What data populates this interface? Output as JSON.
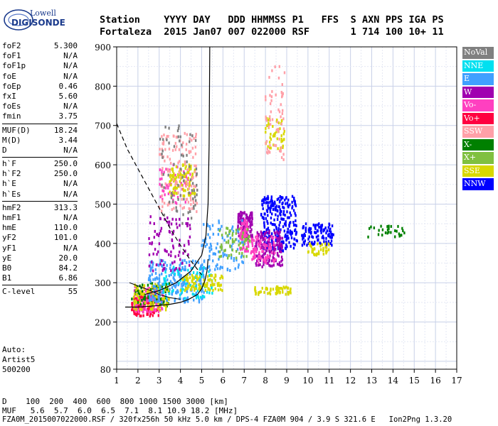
{
  "brand": {
    "line1": "Lowell",
    "line2": "DIGISONDE"
  },
  "header": {
    "titles": [
      "Station",
      "YYYY",
      "DAY",
      "DDD",
      "HHMMSS",
      "P1",
      "FFS",
      "S",
      "AXN",
      "PPS",
      "IGA",
      "PS"
    ],
    "values": [
      "Fortaleza",
      "2015",
      "Jan07",
      "007",
      "022000",
      "RSF",
      "",
      "1",
      "714",
      "100",
      "10+",
      "11"
    ]
  },
  "params": [
    {
      "label": "foF2",
      "value": "5.300"
    },
    {
      "label": "foF1",
      "value": "N/A"
    },
    {
      "label": "foF1p",
      "value": "N/A"
    },
    {
      "label": "foE",
      "value": "N/A"
    },
    {
      "label": "foEp",
      "value": "0.46"
    },
    {
      "label": "fxI",
      "value": "5.60"
    },
    {
      "label": "foEs",
      "value": "N/A"
    },
    {
      "label": "fmin",
      "value": "3.75"
    },
    {
      "label": "MUF(D)",
      "value": "18.24"
    },
    {
      "label": "M(D)",
      "value": "3.44"
    },
    {
      "label": "D",
      "value": "N/A"
    },
    {
      "label": "h`F",
      "value": "250.0"
    },
    {
      "label": "h`F2",
      "value": "250.0"
    },
    {
      "label": "h`E",
      "value": "N/A"
    },
    {
      "label": "h`Es",
      "value": "N/A"
    },
    {
      "label": "hmF2",
      "value": "313.3"
    },
    {
      "label": "hmF1",
      "value": "N/A"
    },
    {
      "label": "hmE",
      "value": "110.0"
    },
    {
      "label": "yF2",
      "value": "101.0"
    },
    {
      "label": "yF1",
      "value": "N/A"
    },
    {
      "label": "yE",
      "value": "20.0"
    },
    {
      "label": "B0",
      "value": "84.2"
    },
    {
      "label": "B1",
      "value": "6.86"
    },
    {
      "label": "C-level",
      "value": "55"
    }
  ],
  "auto": {
    "line1": "Auto:",
    "line2": "Artist5",
    "line3": "500200"
  },
  "legend": [
    {
      "label": "NoVal",
      "color": "#808080"
    },
    {
      "label": "NNE",
      "color": "#00e0f0"
    },
    {
      "label": "E",
      "color": "#40a0ff"
    },
    {
      "label": "W",
      "color": "#a000b0"
    },
    {
      "label": "Vo-",
      "color": "#ff40c0"
    },
    {
      "label": "Vo+",
      "color": "#ff0040"
    },
    {
      "label": "SSW",
      "color": "#ffa0a8"
    },
    {
      "label": "X-",
      "color": "#008000"
    },
    {
      "label": "X+",
      "color": "#80c040"
    },
    {
      "label": "SSE",
      "color": "#d8d800"
    },
    {
      "label": "NNW",
      "color": "#0000ff"
    }
  ],
  "bottom": {
    "d_row": "D    100  200  400  600  800 1000 1500 3000 [km]",
    "muf_row": "MUF   5.6  5.7  6.0  6.5  7.1  8.1 10.9 18.2 [MHz]",
    "footer": "FZA0M_2015007022000.RSF / 320fx256h 50 kHz 5.0 km / DPS-4 FZA0M 904 / 3.9 S 321.6 E   Ion2Png 1.3.20"
  },
  "chart_data": {
    "type": "scatter",
    "xlim": [
      1,
      17
    ],
    "ylim": [
      80,
      900
    ],
    "xticks": [
      1,
      2,
      3,
      4,
      5,
      6,
      7,
      8,
      9,
      10,
      11,
      12,
      13,
      14,
      15,
      16,
      17
    ],
    "yticks": [
      80,
      200,
      300,
      400,
      500,
      600,
      700,
      800,
      900
    ],
    "grid": true,
    "clusters": [
      {
        "color": "#ff0040",
        "f": [
          1.7,
          3.0
        ],
        "h": [
          215,
          265
        ],
        "n": 140
      },
      {
        "color": "#ff40c0",
        "f": [
          1.8,
          3.2
        ],
        "h": [
          225,
          290
        ],
        "n": 120
      },
      {
        "color": "#008000",
        "f": [
          1.7,
          3.5
        ],
        "h": [
          240,
          300
        ],
        "n": 80
      },
      {
        "color": "#d8d800",
        "f": [
          1.8,
          3.5
        ],
        "h": [
          230,
          300
        ],
        "n": 80
      },
      {
        "color": "#40a0ff",
        "f": [
          2.5,
          5.2
        ],
        "h": [
          250,
          360
        ],
        "n": 220
      },
      {
        "color": "#00e0f0",
        "f": [
          3.0,
          5.5
        ],
        "h": [
          260,
          340
        ],
        "n": 80
      },
      {
        "color": "#d8d800",
        "f": [
          4.0,
          6.0
        ],
        "h": [
          280,
          320
        ],
        "n": 100
      },
      {
        "color": "#a000b0",
        "f": [
          2.5,
          4.5
        ],
        "h": [
          330,
          470
        ],
        "n": 90
      },
      {
        "color": "#ff40c0",
        "f": [
          3.0,
          4.5
        ],
        "h": [
          500,
          600
        ],
        "n": 60
      },
      {
        "color": "#d8d800",
        "f": [
          3.5,
          4.7
        ],
        "h": [
          520,
          600
        ],
        "n": 100
      },
      {
        "color": "#ffa0a8",
        "f": [
          3.0,
          4.8
        ],
        "h": [
          480,
          680
        ],
        "n": 120
      },
      {
        "color": "#808080",
        "f": [
          3.0,
          4.8
        ],
        "h": [
          450,
          700
        ],
        "n": 70
      },
      {
        "color": "#a000b0",
        "f": [
          6.7,
          7.4
        ],
        "h": [
          410,
          480
        ],
        "n": 120
      },
      {
        "color": "#ff40c0",
        "f": [
          6.8,
          7.2
        ],
        "h": [
          380,
          460
        ],
        "n": 70
      },
      {
        "color": "#0000ff",
        "f": [
          7.8,
          9.5
        ],
        "h": [
          380,
          520
        ],
        "n": 260
      },
      {
        "color": "#a000b0",
        "f": [
          7.5,
          8.8
        ],
        "h": [
          340,
          430
        ],
        "n": 150
      },
      {
        "color": "#ff40c0",
        "f": [
          7.3,
          8.5
        ],
        "h": [
          350,
          420
        ],
        "n": 80
      },
      {
        "color": "#d8d800",
        "f": [
          7.5,
          9.2
        ],
        "h": [
          270,
          290
        ],
        "n": 60
      },
      {
        "color": "#d8d800",
        "f": [
          8.0,
          8.9
        ],
        "h": [
          640,
          720
        ],
        "n": 50
      },
      {
        "color": "#ffa0a8",
        "f": [
          8.0,
          8.9
        ],
        "h": [
          600,
          850
        ],
        "n": 60
      },
      {
        "color": "#40a0ff",
        "f": [
          5.0,
          7.0
        ],
        "h": [
          330,
          460
        ],
        "n": 90
      },
      {
        "color": "#80c040",
        "f": [
          5.8,
          7.3
        ],
        "h": [
          360,
          440
        ],
        "n": 60
      },
      {
        "color": "#0000ff",
        "f": [
          9.7,
          11.2
        ],
        "h": [
          395,
          450
        ],
        "n": 110
      },
      {
        "color": "#d8d800",
        "f": [
          10.0,
          11.0
        ],
        "h": [
          370,
          400
        ],
        "n": 40
      },
      {
        "color": "#008000",
        "f": [
          12.8,
          14.6
        ],
        "h": [
          415,
          445
        ],
        "n": 30
      }
    ]
  }
}
